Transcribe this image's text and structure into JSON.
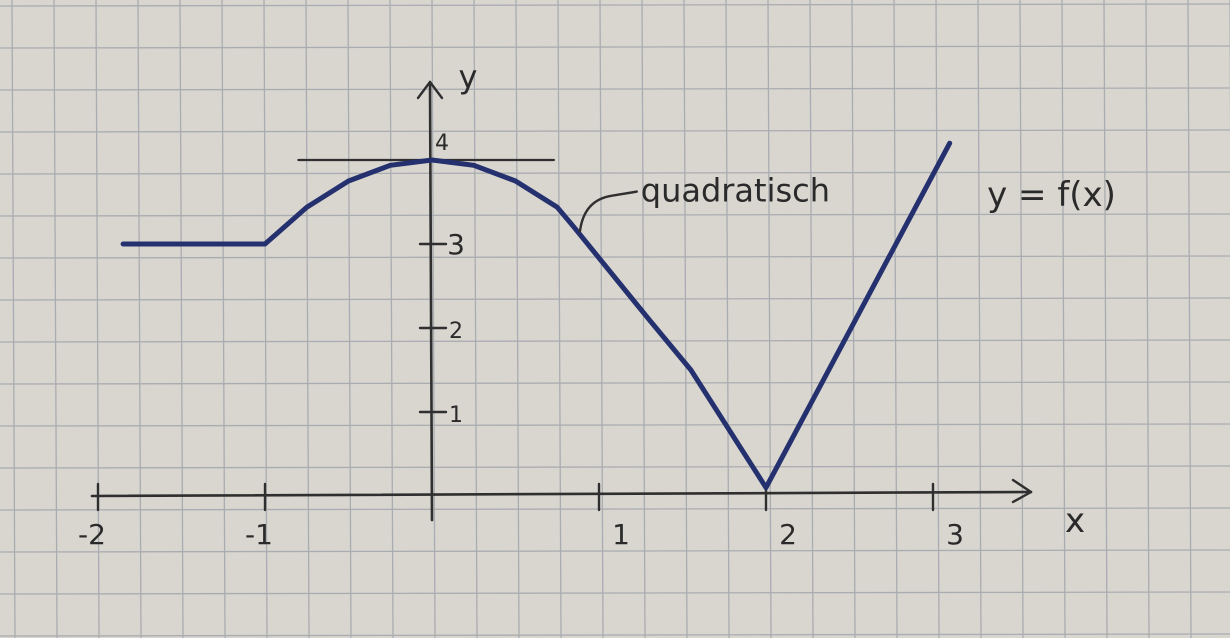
{
  "colors": {
    "paper": "#d9d6d0",
    "grid": "#a9acb0",
    "pencil": "#2f2f2f",
    "ink": "#25306e"
  },
  "chart_data": {
    "type": "line",
    "title": "",
    "xlabel": "x",
    "ylabel": "y",
    "xlim": [
      -2,
      3
    ],
    "ylim": [
      0,
      4
    ],
    "x_ticks": [
      {
        "value": -2,
        "label": "-2"
      },
      {
        "value": -1,
        "label": "-1"
      },
      {
        "value": 1,
        "label": "1"
      },
      {
        "value": 2,
        "label": "2"
      },
      {
        "value": 3,
        "label": "3"
      }
    ],
    "y_ticks": [
      {
        "value": 1,
        "label": "1"
      },
      {
        "value": 2,
        "label": "2"
      },
      {
        "value": 3,
        "label": "3"
      },
      {
        "value": 4,
        "label": "4"
      }
    ],
    "tangent_line": {
      "y": 4,
      "x_from": -0.8,
      "x_to": 0.73
    },
    "series": [
      {
        "name": "y = f(x)",
        "points": [
          {
            "x": -1.85,
            "y": 3
          },
          {
            "x": -1,
            "y": 3
          },
          {
            "x": -0.75,
            "y": 3.4375
          },
          {
            "x": -0.5,
            "y": 3.75
          },
          {
            "x": -0.25,
            "y": 3.9375
          },
          {
            "x": 0,
            "y": 4
          },
          {
            "x": 0.25,
            "y": 3.9375
          },
          {
            "x": 0.5,
            "y": 3.75
          },
          {
            "x": 0.75,
            "y": 3.4375
          },
          {
            "x": 0.85,
            "y": 3.2
          },
          {
            "x": 1.3,
            "y": 2.1
          },
          {
            "x": 1.55,
            "y": 1.5
          },
          {
            "x": 2,
            "y": 0.1
          },
          {
            "x": 3.1,
            "y": 4.2
          }
        ]
      }
    ],
    "annotations": [
      {
        "id": "segment_label",
        "text": "quadratisch",
        "x": 1.25,
        "y": 3.6,
        "points_to": {
          "x": 0.85,
          "y": 3.15
        }
      },
      {
        "id": "function_label",
        "text": "y = f(x)",
        "x": 3.3,
        "y": 3.5
      }
    ]
  }
}
